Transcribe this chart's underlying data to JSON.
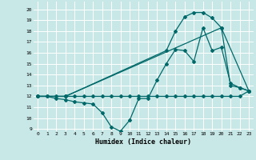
{
  "title": "",
  "xlabel": "Humidex (Indice chaleur)",
  "bg_color": "#c8e8e8",
  "grid_color": "#ffffff",
  "line_color": "#006868",
  "xlim": [
    -0.5,
    23.5
  ],
  "ylim": [
    8.8,
    20.7
  ],
  "xticks": [
    0,
    1,
    2,
    3,
    4,
    5,
    6,
    7,
    8,
    9,
    10,
    11,
    12,
    13,
    14,
    15,
    16,
    17,
    18,
    19,
    20,
    21,
    22,
    23
  ],
  "yticks": [
    9,
    10,
    11,
    12,
    13,
    14,
    15,
    16,
    17,
    18,
    19,
    20
  ],
  "line1_x": [
    0,
    1,
    2,
    3,
    4,
    5,
    6,
    7,
    8,
    9,
    10,
    11,
    12,
    13,
    14,
    15,
    16,
    17,
    18,
    19,
    20,
    21,
    22,
    23
  ],
  "line1_y": [
    12,
    12,
    12,
    12,
    12,
    12,
    12,
    12,
    12,
    12,
    12,
    12,
    12,
    12,
    12,
    12,
    12,
    12,
    12,
    12,
    12,
    12,
    12,
    12.5
  ],
  "line2_x": [
    0,
    1,
    2,
    3,
    4,
    5,
    6,
    7,
    8,
    9,
    10,
    11,
    12,
    13,
    14,
    15,
    16,
    17,
    18,
    19,
    20,
    21,
    22,
    23
  ],
  "line2_y": [
    12,
    12,
    11.8,
    11.7,
    11.5,
    11.4,
    11.3,
    10.5,
    9.2,
    8.8,
    9.8,
    11.8,
    11.8,
    13.5,
    15.0,
    16.3,
    16.2,
    15.2,
    18.3,
    16.2,
    16.5,
    13.2,
    12.8,
    12.5
  ],
  "line3_x": [
    0,
    3,
    14,
    15,
    16,
    17,
    18,
    19,
    20,
    21,
    22,
    23
  ],
  "line3_y": [
    12,
    12,
    16.2,
    18.0,
    19.3,
    19.7,
    19.7,
    19.2,
    18.3,
    13.0,
    12.8,
    12.5
  ],
  "line4_x": [
    0,
    3,
    20,
    23
  ],
  "line4_y": [
    12,
    12,
    18.3,
    12.5
  ]
}
